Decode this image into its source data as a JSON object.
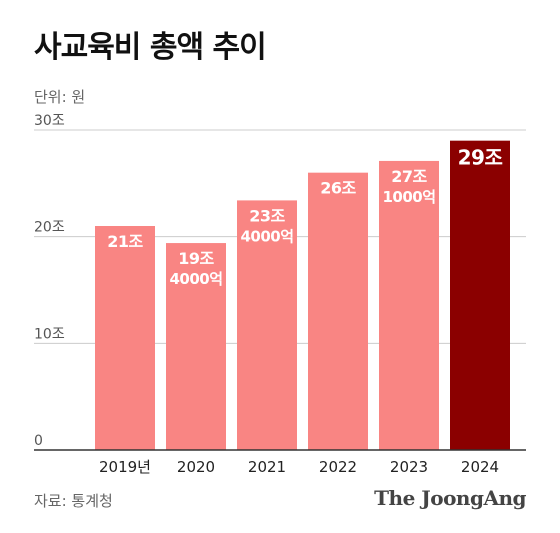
{
  "title": "사교육비 총액 추이",
  "unit_label": "단위: 원",
  "source_label": "자료: 통계청",
  "brand": "The JoongAng",
  "colors": {
    "bar": "#F98583",
    "highlight": "#8B0000",
    "grid": "#CCCCCC",
    "axis": "#333333",
    "tick_text": "#555555",
    "label_text": "#FFFFFF"
  },
  "chart_data": {
    "type": "bar",
    "categories": [
      "2019년",
      "2020",
      "2021",
      "2022",
      "2023",
      "2024"
    ],
    "values": [
      21,
      19.4,
      23.4,
      26,
      27.1,
      29
    ],
    "value_labels": [
      [
        "21조"
      ],
      [
        "19조",
        "4000억"
      ],
      [
        "23조",
        "4000억"
      ],
      [
        "26조"
      ],
      [
        "27조",
        "1000억"
      ],
      [
        "29조"
      ]
    ],
    "highlight_index": 5,
    "yticks": [
      0,
      10,
      20,
      30
    ],
    "ytick_labels": [
      "0",
      "10조",
      "20조",
      "30조"
    ],
    "ylim": [
      0,
      30
    ],
    "grid": true,
    "title": "사교육비 총액 추이",
    "ylabel": "",
    "xlabel": ""
  }
}
